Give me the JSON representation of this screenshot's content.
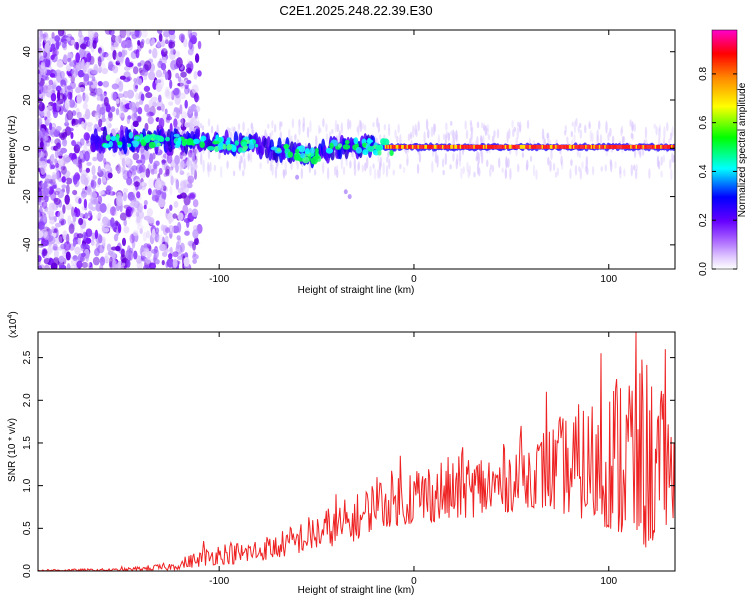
{
  "title": "C2E1.2025.248.22.39.E30",
  "chart_data": [
    {
      "type": "heatmap",
      "title": "C2E1.2025.248.22.39.E30",
      "xlabel": "Height of straight line (km)",
      "ylabel": "Frequency (Hz)",
      "xlim": [
        -193,
        134
      ],
      "ylim": [
        -50,
        49
      ],
      "x_ticks": [
        "-100",
        "0",
        "100"
      ],
      "x_tick_values": [
        -100,
        0,
        100
      ],
      "y_ticks": [
        "40",
        "20",
        "0",
        "-20",
        "-40"
      ],
      "y_tick_values": [
        40,
        20,
        0,
        -20,
        -40
      ],
      "colorbar": {
        "label": "Normalized spectral amplitude",
        "range": [
          0.0,
          0.98
        ],
        "ticks": [
          "0.0",
          "0.2",
          "0.4",
          "0.6",
          "0.8"
        ],
        "tick_values": [
          0.0,
          0.2,
          0.4,
          0.6,
          0.8
        ],
        "colors": [
          "#ffffff",
          "#e0c8ff",
          "#8800ff",
          "#0000ff",
          "#00ffff",
          "#00ff00",
          "#ffff00",
          "#ff8800",
          "#ff0000",
          "#ff00cc"
        ]
      },
      "ridge": {
        "description": "spectral ridge near 0 Hz",
        "points": [
          [
            -140,
            3
          ],
          [
            -120,
            3
          ],
          [
            -100,
            2
          ],
          [
            -80,
            1
          ],
          [
            -60,
            -2
          ],
          [
            -50,
            -3
          ],
          [
            -40,
            0
          ],
          [
            -30,
            1
          ],
          [
            -20,
            0.5
          ],
          [
            -10,
            0.5
          ],
          [
            0,
            0.5
          ],
          [
            30,
            0.5
          ],
          [
            60,
            0.5
          ],
          [
            100,
            0.5
          ],
          [
            134,
            0.5
          ]
        ]
      },
      "noise_region_x": [
        -193,
        -120
      ]
    },
    {
      "type": "line",
      "xlabel": "Height of straight line (km)",
      "ylabel": "SNR (10 * v/v)",
      "y_multiplier": "(x10",
      "y_multiplier_exp": "4",
      "y_multiplier_close": ")",
      "xlim": [
        -193,
        134
      ],
      "ylim": [
        0,
        2.8
      ],
      "x_ticks": [
        "-100",
        "0",
        "100"
      ],
      "x_tick_values": [
        -100,
        0,
        100
      ],
      "y_ticks": [
        "0.0",
        "0.5",
        "1.0",
        "1.5",
        "2.0",
        "2.5"
      ],
      "y_tick_values": [
        0,
        0.5,
        1.0,
        1.5,
        2.0,
        2.5
      ],
      "color": "#ee2222",
      "envelope": {
        "x": [
          -193,
          -150,
          -125,
          -110,
          -100,
          -90,
          -70,
          -50,
          -30,
          -20,
          0,
          20,
          40,
          60,
          80,
          100,
          110,
          120,
          134
        ],
        "low": [
          0.0,
          0.0,
          0.01,
          0.05,
          0.08,
          0.08,
          0.15,
          0.25,
          0.35,
          0.5,
          0.55,
          0.6,
          0.65,
          0.75,
          0.65,
          0.5,
          0.3,
          0.25,
          0.6
        ],
        "high": [
          0.02,
          0.03,
          0.1,
          0.25,
          0.35,
          0.35,
          0.45,
          0.7,
          0.9,
          1.1,
          1.3,
          1.35,
          1.45,
          1.6,
          1.9,
          2.2,
          2.8,
          2.5,
          1.8
        ]
      },
      "peaks": [
        [
          -150,
          0.05
        ],
        [
          -108,
          0.35
        ],
        [
          -40,
          0.9
        ],
        [
          -19,
          1.1
        ],
        [
          -7,
          1.35
        ],
        [
          25,
          1.45
        ],
        [
          55,
          1.7
        ],
        [
          68,
          2.1
        ],
        [
          96,
          2.55
        ],
        [
          114,
          2.8
        ],
        [
          129,
          2.6
        ]
      ]
    }
  ]
}
